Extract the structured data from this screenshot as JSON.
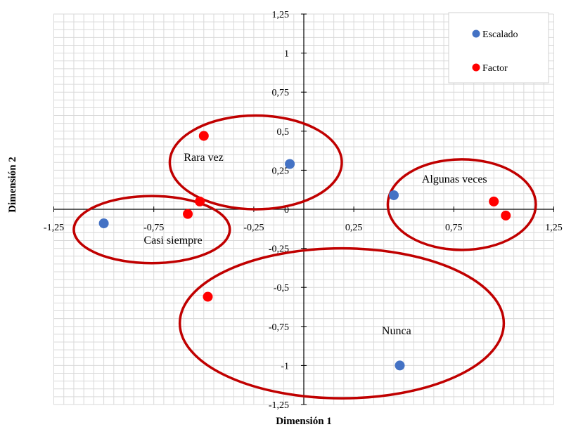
{
  "chart_data": {
    "type": "scatter",
    "xlabel": "Dimensión 1",
    "ylabel": "Dimensión 2",
    "xlim": [
      -1.25,
      1.25
    ],
    "ylim": [
      -1.25,
      1.25
    ],
    "grid": true,
    "legend_position": "top-right",
    "x_tick_labels": [
      "-1,25",
      "-0,75",
      "-0,25",
      "0,25",
      "0,75",
      "1,25"
    ],
    "y_tick_labels": [
      "1,25",
      "1",
      "0,75",
      "0,5",
      "0,25",
      "0",
      "-0,25",
      "-0,5",
      "-0,75",
      "-1",
      "-1,25"
    ],
    "series": [
      {
        "name": "Escalado",
        "color": "#4472c4",
        "points": [
          {
            "x": -1.0,
            "y": -0.09
          },
          {
            "x": -0.07,
            "y": 0.29
          },
          {
            "x": 0.45,
            "y": 0.09
          },
          {
            "x": 0.48,
            "y": -1.0
          }
        ]
      },
      {
        "name": "Factor",
        "color": "#ff0000",
        "points": [
          {
            "x": -0.5,
            "y": 0.47
          },
          {
            "x": -0.52,
            "y": 0.05
          },
          {
            "x": -0.58,
            "y": -0.03
          },
          {
            "x": -0.48,
            "y": -0.56
          },
          {
            "x": 0.95,
            "y": 0.05
          },
          {
            "x": 1.01,
            "y": -0.04
          }
        ]
      }
    ],
    "annotations": [
      {
        "label": "Rara vez",
        "label_x": -0.6,
        "label_y": 0.31,
        "cx": -0.24,
        "cy": 0.3,
        "rx": 0.43,
        "ry": 0.3
      },
      {
        "label": "Casi siempre",
        "label_x": -0.8,
        "label_y": -0.22,
        "cx": -0.76,
        "cy": -0.13,
        "rx": 0.39,
        "ry": 0.215
      },
      {
        "label": "Algunas veces",
        "label_x": 0.59,
        "label_y": 0.17,
        "cx": 0.79,
        "cy": 0.03,
        "rx": 0.37,
        "ry": 0.29
      },
      {
        "label": "Nunca",
        "label_x": 0.39,
        "label_y": -0.8,
        "cx": 0.19,
        "cy": -0.73,
        "rx": 0.81,
        "ry": 0.48
      }
    ],
    "ellipse_color": "#c00000"
  }
}
